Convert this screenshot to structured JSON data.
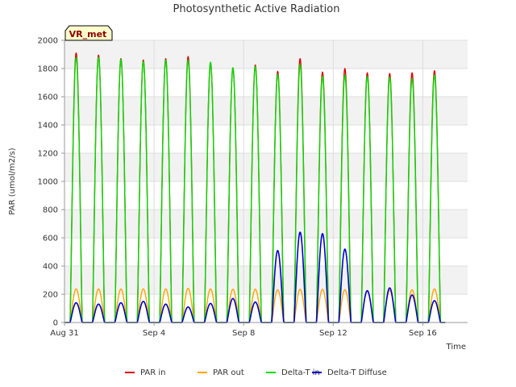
{
  "chart_data": {
    "type": "line",
    "title": "Photosynthetic Active Radiation",
    "xlabel": "Time",
    "ylabel": "PAR (umol/m2/s)",
    "site_badge": "VR_met",
    "x_range_days": [
      0,
      18
    ],
    "ylim": [
      0,
      2000
    ],
    "yticks": [
      0,
      200,
      400,
      600,
      800,
      1000,
      1200,
      1400,
      1600,
      1800,
      2000
    ],
    "xticks": [
      {
        "day": 0,
        "label": "Aug 31"
      },
      {
        "day": 4,
        "label": "Sep 4"
      },
      {
        "day": 8,
        "label": "Sep 8"
      },
      {
        "day": 12,
        "label": "Sep 12"
      },
      {
        "day": 16,
        "label": "Sep 16"
      }
    ],
    "grid": true,
    "legend_position": "bottom",
    "day_index": [
      0,
      1,
      2,
      3,
      4,
      5,
      6,
      7,
      8,
      9,
      10,
      11,
      12,
      13,
      14,
      15,
      16
    ],
    "series": [
      {
        "name": "PAR in",
        "color": "#dd0000",
        "daily_peak": [
          1910,
          1895,
          1870,
          1860,
          1870,
          1885,
          1840,
          1805,
          1825,
          1780,
          1870,
          1775,
          1800,
          1770,
          1765,
          1770,
          1785
        ]
      },
      {
        "name": "PAR out",
        "color": "#ffa500",
        "daily_peak": [
          238,
          238,
          238,
          238,
          238,
          242,
          238,
          236,
          236,
          232,
          235,
          235,
          232,
          228,
          228,
          232,
          238
        ]
      },
      {
        "name": "Delta-T in",
        "color": "#00dd00",
        "daily_peak": [
          1880,
          1880,
          1865,
          1850,
          1860,
          1860,
          1845,
          1805,
          1815,
          1760,
          1830,
          1745,
          1755,
          1745,
          1740,
          1730,
          1755
        ]
      },
      {
        "name": "Delta-T Diffuse",
        "color": "#0000cc",
        "daily_peak": [
          140,
          130,
          140,
          150,
          130,
          110,
          135,
          170,
          145,
          510,
          640,
          630,
          520,
          225,
          245,
          195,
          155
        ]
      }
    ]
  }
}
